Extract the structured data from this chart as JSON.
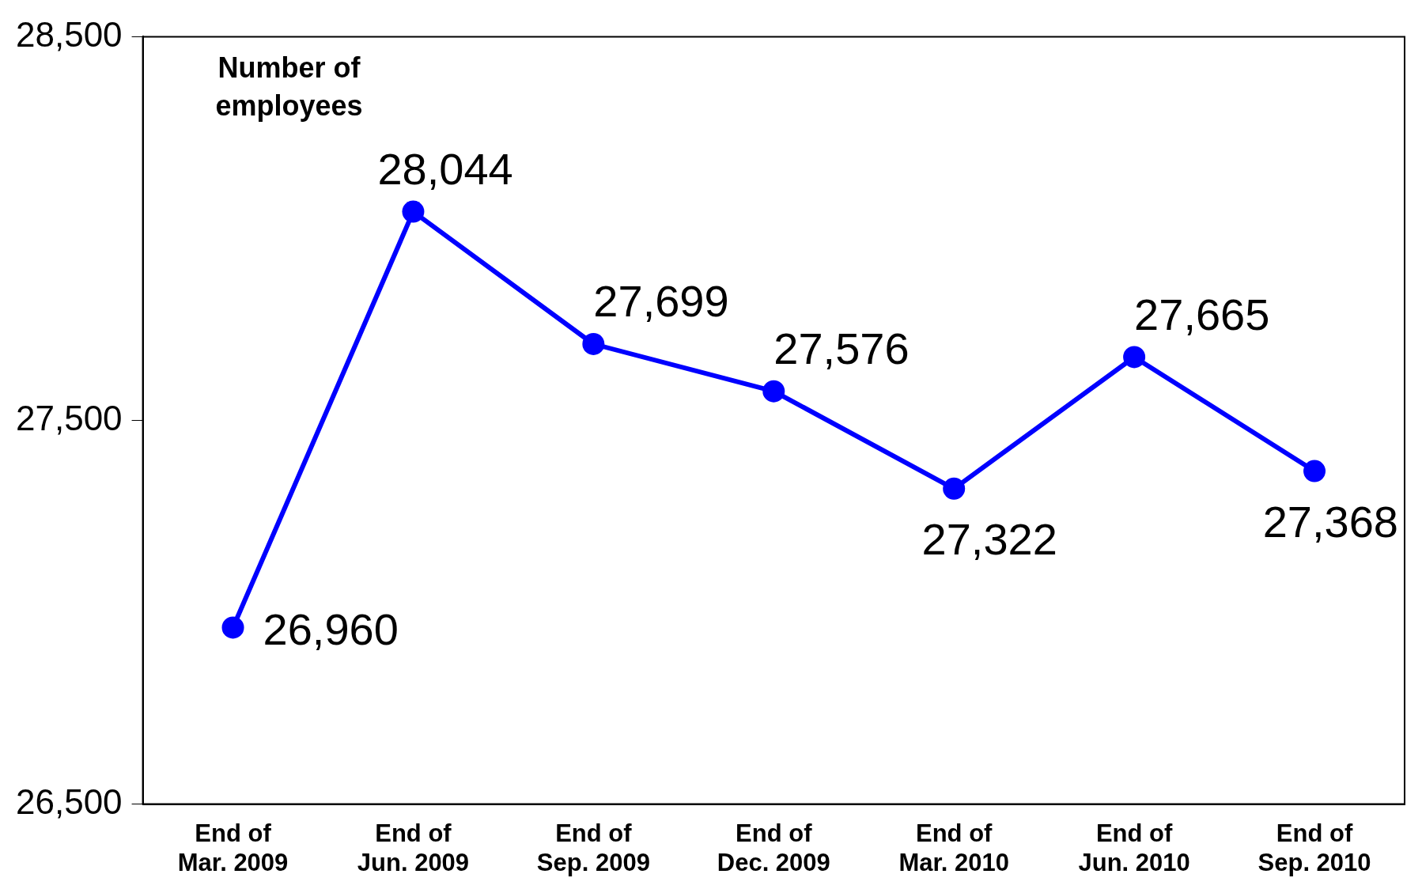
{
  "chart_data": {
    "type": "line",
    "ylabel": "Number of employees",
    "categories": [
      "End of Mar. 2009",
      "End of Jun. 2009",
      "End of Sep. 2009",
      "End of Dec. 2009",
      "End of Mar. 2010",
      "End of Jun. 2010",
      "End of Sep. 2010"
    ],
    "series": [
      {
        "color": "#0000ff",
        "values": [
          26960,
          28044,
          27699,
          27576,
          27322,
          27665,
          27368
        ],
        "value_labels": [
          "26,960",
          "28,044",
          "27,699",
          "27,576",
          "27,322",
          "27,665",
          "27,368"
        ]
      }
    ],
    "ylim": [
      26500,
      28500
    ],
    "yticks": [
      {
        "value": 26500,
        "label": "26,500"
      },
      {
        "value": 27500,
        "label": "27,500"
      },
      {
        "value": 28500,
        "label": "28,500"
      }
    ],
    "marker": "circle",
    "line_style": "solid",
    "legend": false
  }
}
